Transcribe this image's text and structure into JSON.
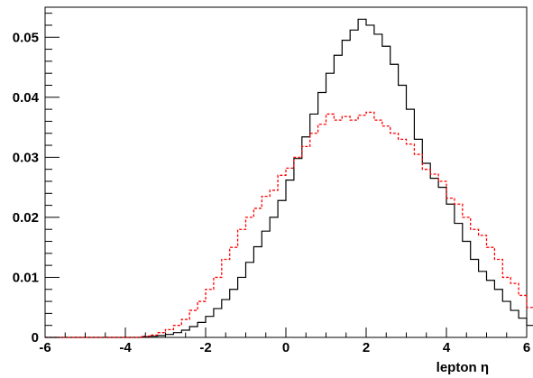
{
  "chart_data": {
    "type": "line",
    "step": true,
    "xlabel": "lepton η",
    "xlim": [
      -6,
      6
    ],
    "ylim": [
      0,
      0.055
    ],
    "x_ticks": [
      -6,
      -4,
      -2,
      0,
      2,
      4,
      6
    ],
    "y_ticks": [
      0,
      0.01,
      0.02,
      0.03,
      0.04,
      0.05
    ],
    "x_tick_labels": [
      "-6",
      "-4",
      "-2",
      "0",
      "2",
      "4",
      "6"
    ],
    "y_tick_labels": [
      "0",
      "0.01",
      "0.02",
      "0.03",
      "0.04",
      "0.05"
    ],
    "grid": false,
    "bin_width": 0.2,
    "bin_edges_start": -6.0,
    "series": [
      {
        "style": "solid",
        "color": "#000000",
        "values": [
          0,
          0,
          0,
          0,
          0,
          0,
          0,
          0,
          0,
          0,
          0,
          0,
          0.0001,
          0.0002,
          0.0003,
          0.0005,
          0.0008,
          0.0012,
          0.0018,
          0.0025,
          0.0035,
          0.0048,
          0.0063,
          0.008,
          0.01,
          0.0125,
          0.0151,
          0.0177,
          0.02,
          0.0228,
          0.0262,
          0.0298,
          0.0334,
          0.0372,
          0.0408,
          0.044,
          0.047,
          0.0495,
          0.0512,
          0.053,
          0.052,
          0.0505,
          0.0485,
          0.0455,
          0.042,
          0.038,
          0.033,
          0.029,
          0.0265,
          0.025,
          0.0222,
          0.019,
          0.016,
          0.013,
          0.011,
          0.0095,
          0.008,
          0.006,
          0.0045,
          0.0032,
          0.002,
          0.0014,
          0.001,
          0.0008,
          0.0006,
          0.0004,
          0.0002,
          0,
          0,
          0,
          0,
          0,
          0,
          0,
          0,
          0,
          0,
          0,
          0,
          0
        ]
      },
      {
        "style": "dashed",
        "color": "#ff0000",
        "values": [
          0,
          0,
          0,
          0,
          0,
          0,
          0,
          0,
          0,
          0,
          0,
          0,
          0.0002,
          0.0004,
          0.0008,
          0.0013,
          0.002,
          0.003,
          0.0045,
          0.006,
          0.008,
          0.01,
          0.013,
          0.015,
          0.018,
          0.02,
          0.0215,
          0.0235,
          0.0245,
          0.027,
          0.0282,
          0.03,
          0.0318,
          0.034,
          0.0355,
          0.0372,
          0.0362,
          0.0368,
          0.0362,
          0.037,
          0.0375,
          0.0362,
          0.0352,
          0.034,
          0.033,
          0.0322,
          0.0305,
          0.028,
          0.0272,
          0.026,
          0.0232,
          0.0222,
          0.02,
          0.018,
          0.017,
          0.015,
          0.013,
          0.01,
          0.009,
          0.007,
          0.005,
          0.003,
          0.002,
          0.0014,
          0.001,
          0.0006,
          0.0004,
          0.0002,
          0,
          0,
          0,
          0,
          0,
          0,
          0,
          0,
          0,
          0,
          0,
          0,
          0
        ]
      }
    ]
  }
}
